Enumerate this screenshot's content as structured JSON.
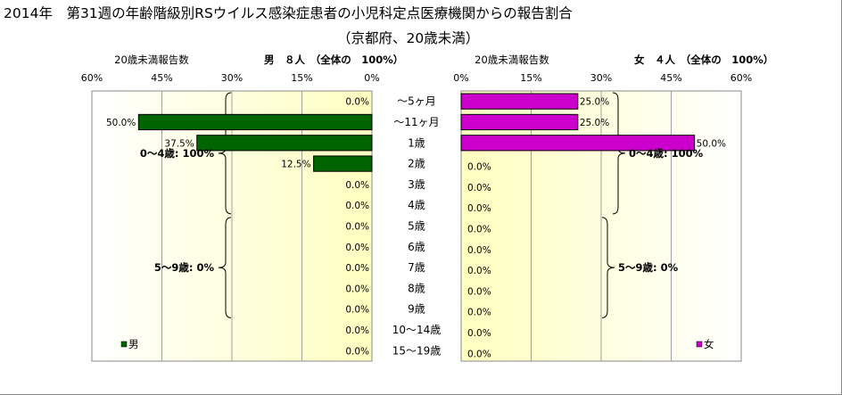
{
  "title": "2014年　第31週の年齢階級別RSウイルス感染症患者の小児科定点医療機関からの報告割合",
  "subtitle": "（京都府、20歳未満）",
  "chart_data": {
    "type": "bar",
    "orientation": "horizontal",
    "categories": [
      "～5ヶ月",
      "～11ヶ月",
      "1歳",
      "2歳",
      "3歳",
      "4歳",
      "5歳",
      "6歳",
      "7歳",
      "8歳",
      "9歳",
      "10～14歳",
      "15～19歳"
    ],
    "panels": [
      {
        "side": "left",
        "axis_title": "20歳未満報告数",
        "header": "男　８人　（全体の　100%）",
        "ticks": [
          "60%",
          "45%",
          "30%",
          "15%",
          "0%"
        ],
        "xlim": [
          0,
          60
        ],
        "direction": "reversed",
        "series": [
          {
            "name": "男",
            "color": "#006400",
            "values": [
              0,
              50,
              37.5,
              12.5,
              0,
              0,
              0,
              0,
              0,
              0,
              0,
              0,
              0
            ],
            "labels": [
              "0.0%",
              "50.0%",
              "37.5%",
              "12.5%",
              "0.0%",
              "0.0%",
              "0.0%",
              "0.0%",
              "0.0%",
              "0.0%",
              "0.0%",
              "0.0%",
              "0.0%"
            ]
          }
        ],
        "legend": "男",
        "brackets": [
          {
            "label": "0～4歳: 100%",
            "from": 0,
            "to": 5
          },
          {
            "label": "5～9歳: 0%",
            "from": 6,
            "to": 10
          }
        ]
      },
      {
        "side": "right",
        "axis_title": "20歳未満報告数",
        "header": "女　４人　（全体の　100%）",
        "ticks": [
          "0%",
          "15%",
          "30%",
          "45%",
          "60%"
        ],
        "xlim": [
          0,
          60
        ],
        "direction": "normal",
        "series": [
          {
            "name": "女",
            "color": "#cc00cc",
            "values": [
              25,
              25,
              50,
              0,
              0,
              0,
              0,
              0,
              0,
              0,
              0,
              0,
              0
            ],
            "labels": [
              "25.0%",
              "25.0%",
              "50.0%",
              "0.0%",
              "0.0%",
              "0.0%",
              "0.0%",
              "0.0%",
              "0.0%",
              "0.0%",
              "0.0%",
              "0.0%",
              "0.0%"
            ]
          }
        ],
        "legend": "女",
        "brackets": [
          {
            "label": "0～4歳: 100%",
            "from": 0,
            "to": 5
          },
          {
            "label": "5～9歳: 0%",
            "from": 6,
            "to": 10
          }
        ]
      }
    ],
    "grid": true,
    "legend_position": "bottom-left / bottom-right"
  }
}
